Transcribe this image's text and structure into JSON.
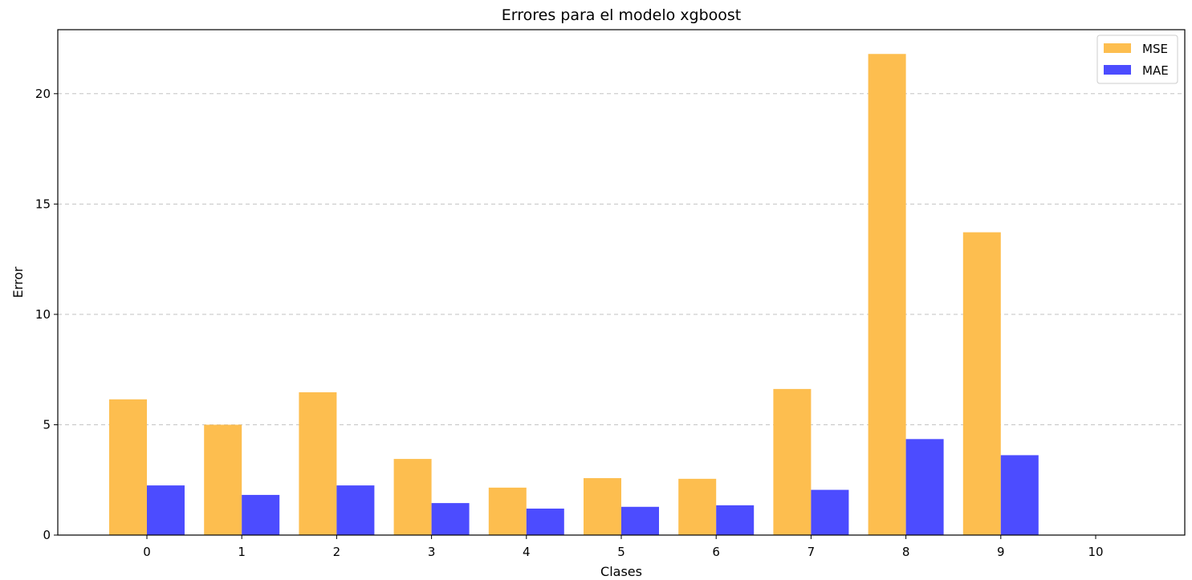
{
  "chart_data": {
    "type": "bar",
    "title": "Errores para el modelo xgboost",
    "xlabel": "Clases",
    "ylabel": "Error",
    "categories": [
      "0",
      "1",
      "2",
      "3",
      "4",
      "5",
      "6",
      "7",
      "8",
      "9",
      "10"
    ],
    "series": [
      {
        "name": "MSE",
        "color": "#fdbe4f",
        "values": [
          6.15,
          5.0,
          6.47,
          3.45,
          2.15,
          2.58,
          2.55,
          6.62,
          21.8,
          13.72,
          0
        ]
      },
      {
        "name": "MAE",
        "color": "#4c4cff",
        "values": [
          2.25,
          1.82,
          2.25,
          1.45,
          1.2,
          1.28,
          1.35,
          2.05,
          4.35,
          3.62,
          0
        ]
      }
    ],
    "ylim": [
      0,
      22.9
    ],
    "yticks": [
      0,
      5,
      10,
      15,
      20
    ],
    "grid": "y-dashed",
    "legend_position": "top-right"
  }
}
